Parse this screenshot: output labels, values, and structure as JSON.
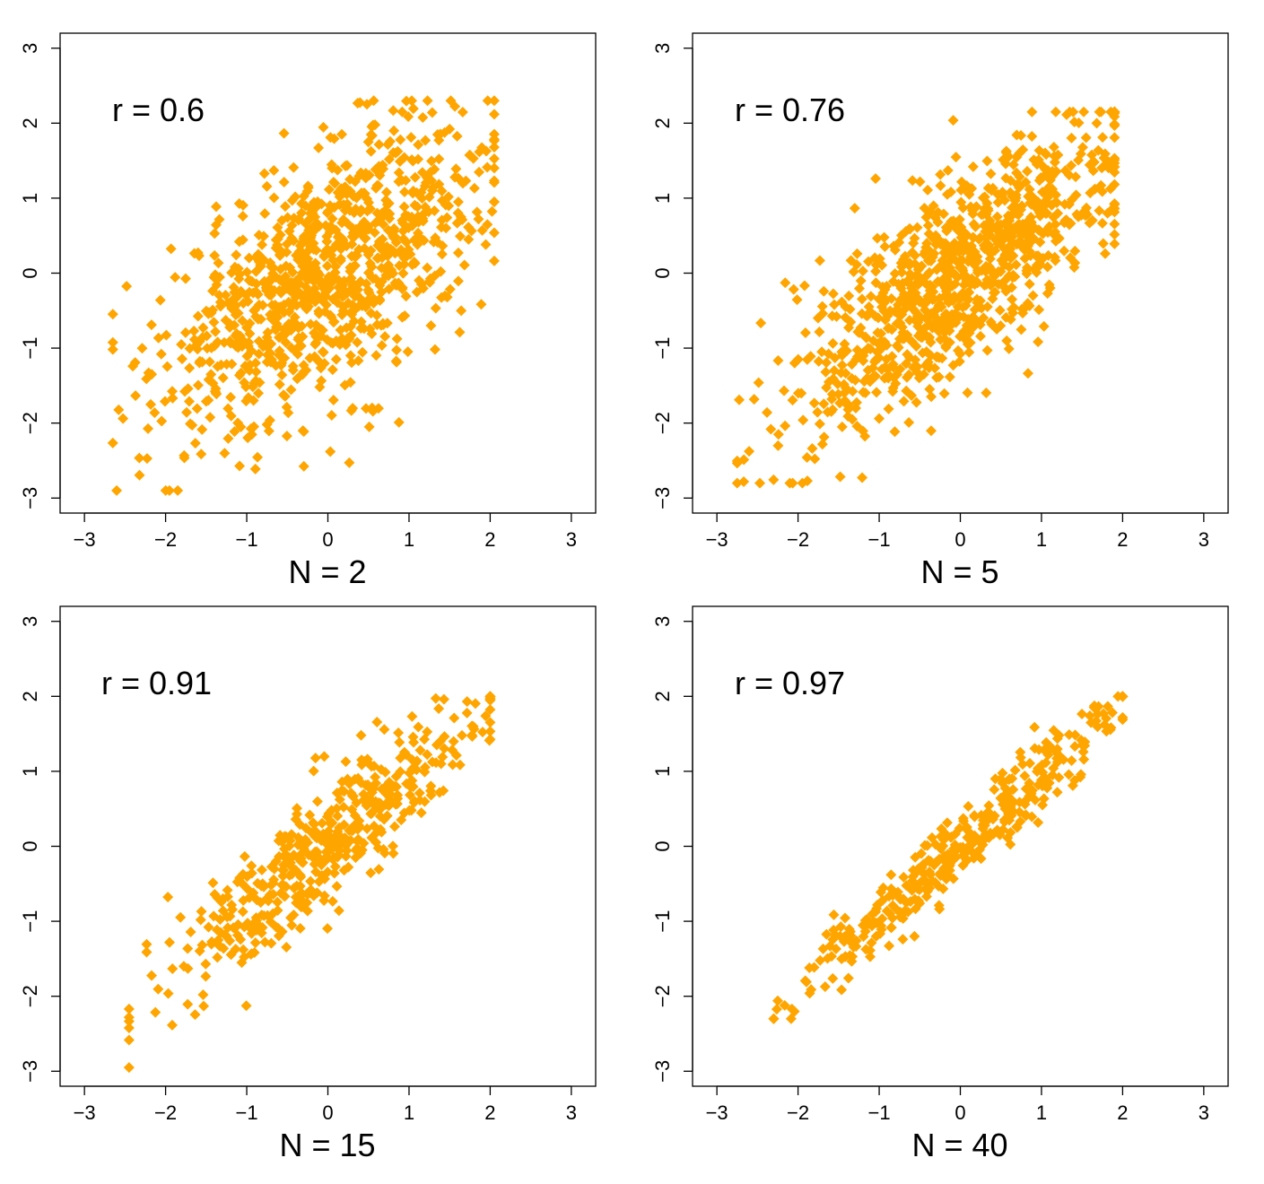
{
  "figure": {
    "marker_color": "#FFA500",
    "marker_shape": "diamond",
    "axis_color": "#000000"
  },
  "chart_data": [
    {
      "type": "scatter",
      "title": "",
      "xlabel": "N = 2",
      "ylabel": "",
      "annotation": "r = 0.6",
      "xlim": [
        -3.3,
        3.3
      ],
      "ylim": [
        -3.2,
        3.2
      ],
      "xticks": [
        -3,
        -2,
        -1,
        0,
        1,
        2,
        3
      ],
      "yticks": [
        -3,
        -2,
        -1,
        0,
        1,
        2,
        3
      ],
      "xtick_labels": [
        "−3",
        "−2",
        "−1",
        "0",
        "1",
        "2",
        "3"
      ],
      "ytick_labels": [
        "−3",
        "−2",
        "−1",
        "0",
        "1",
        "2",
        "3"
      ],
      "grid": false,
      "n_points": 1000,
      "correlation": 0.6,
      "x_range": [
        -2.65,
        2.05
      ],
      "y_range": [
        -2.9,
        2.3
      ]
    },
    {
      "type": "scatter",
      "title": "",
      "xlabel": "N = 5",
      "ylabel": "",
      "annotation": "r = 0.76",
      "xlim": [
        -3.3,
        3.3
      ],
      "ylim": [
        -3.2,
        3.2
      ],
      "xticks": [
        -3,
        -2,
        -1,
        0,
        1,
        2,
        3
      ],
      "yticks": [
        -3,
        -2,
        -1,
        0,
        1,
        2,
        3
      ],
      "xtick_labels": [
        "−3",
        "−2",
        "−1",
        "0",
        "1",
        "2",
        "3"
      ],
      "ytick_labels": [
        "−3",
        "−2",
        "−1",
        "0",
        "1",
        "2",
        "3"
      ],
      "grid": false,
      "n_points": 1000,
      "correlation": 0.76,
      "x_range": [
        -2.75,
        1.9
      ],
      "y_range": [
        -2.8,
        2.15
      ]
    },
    {
      "type": "scatter",
      "title": "",
      "xlabel": "N = 15",
      "ylabel": "",
      "annotation": "r = 0.91",
      "xlim": [
        -3.3,
        3.3
      ],
      "ylim": [
        -3.2,
        3.2
      ],
      "xticks": [
        -3,
        -2,
        -1,
        0,
        1,
        2,
        3
      ],
      "yticks": [
        -3,
        -2,
        -1,
        0,
        1,
        2,
        3
      ],
      "xtick_labels": [
        "−3",
        "−2",
        "−1",
        "0",
        "1",
        "2",
        "3"
      ],
      "ytick_labels": [
        "−3",
        "−2",
        "−1",
        "0",
        "1",
        "2",
        "3"
      ],
      "grid": false,
      "n_points": 500,
      "correlation": 0.91,
      "x_range": [
        -2.45,
        2.0
      ],
      "y_range": [
        -2.95,
        2.0
      ]
    },
    {
      "type": "scatter",
      "title": "",
      "xlabel": "N = 40",
      "ylabel": "",
      "annotation": "r = 0.97",
      "xlim": [
        -3.3,
        3.3
      ],
      "ylim": [
        -3.2,
        3.2
      ],
      "xticks": [
        -3,
        -2,
        -1,
        0,
        1,
        2,
        3
      ],
      "yticks": [
        -3,
        -2,
        -1,
        0,
        1,
        2,
        3
      ],
      "xtick_labels": [
        "−3",
        "−2",
        "−1",
        "0",
        "1",
        "2",
        "3"
      ],
      "ytick_labels": [
        "−3",
        "−2",
        "−1",
        "0",
        "1",
        "2",
        "3"
      ],
      "grid": false,
      "n_points": 400,
      "correlation": 0.97,
      "x_range": [
        -2.3,
        2.0
      ],
      "y_range": [
        -2.3,
        2.0
      ]
    }
  ]
}
